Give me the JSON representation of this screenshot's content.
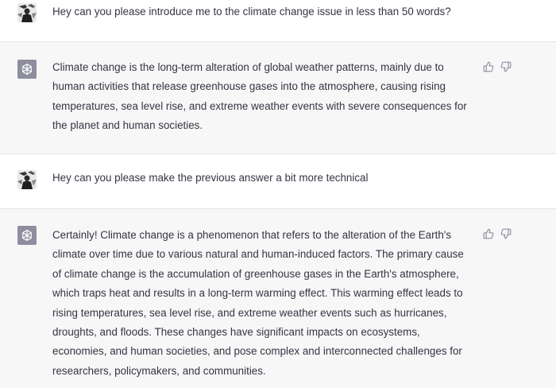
{
  "conversation": {
    "turns": [
      {
        "role": "user",
        "avatar_icon": "user-photo-icon",
        "text": "Hey can you please introduce me to the climate change issue in less than 50 words?"
      },
      {
        "role": "assistant",
        "avatar_icon": "openai-logo-icon",
        "text": "Climate change is the long-term alteration of global weather patterns, mainly due to human activities that release greenhouse gases into the atmosphere, causing rising temperatures, sea level rise, and extreme weather events with severe consequences for the planet and human societies.",
        "feedback_icons": [
          "thumbs-up-icon",
          "thumbs-down-icon"
        ]
      },
      {
        "role": "user",
        "avatar_icon": "user-photo-icon",
        "text": "Hey can you please make the previous answer a bit more technical"
      },
      {
        "role": "assistant",
        "avatar_icon": "openai-logo-icon",
        "text": "Certainly! Climate change is a phenomenon that refers to the alteration of the Earth's climate over time due to various natural and human-induced factors. The primary cause of climate change is the accumulation of greenhouse gases in the Earth's atmosphere, which traps heat and results in a long-term warming effect. This warming effect leads to rising temperatures, sea level rise, and extreme weather events such as hurricanes, droughts, and floods. These changes have significant impacts on ecosystems, economies, and human societies, and pose complex and interconnected challenges for researchers, policymakers, and communities.",
        "feedback_icons": [
          "thumbs-up-icon",
          "thumbs-down-icon"
        ]
      }
    ]
  },
  "colors": {
    "assistant_bg": "#f7f7f8",
    "user_bg": "#ffffff",
    "text": "#343541",
    "bot_avatar_bg": "#8e8ea0"
  }
}
